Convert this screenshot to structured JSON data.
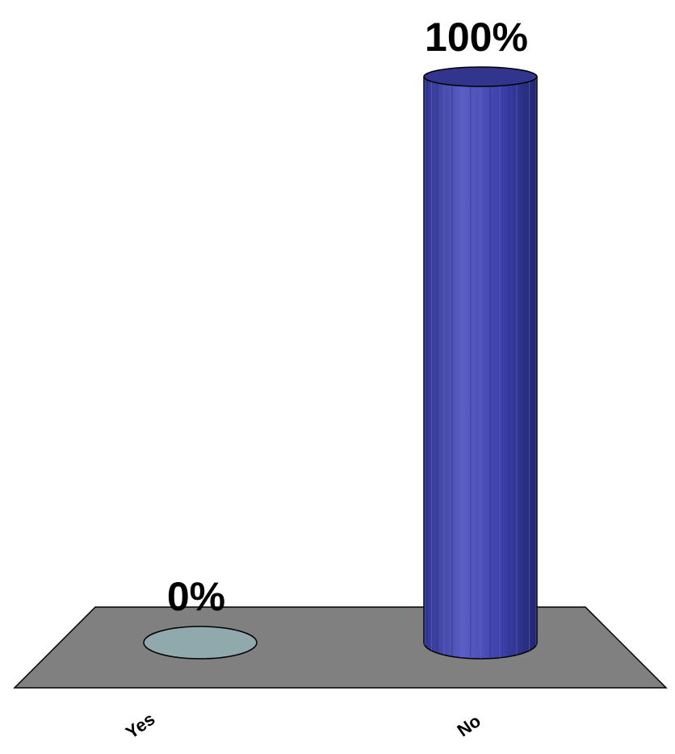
{
  "chart_data": {
    "type": "bar",
    "bar_shape": "cylinder",
    "three_d": true,
    "categories": [
      "Yes",
      "No"
    ],
    "values": [
      0,
      100
    ],
    "data_labels": [
      "0%",
      "100%"
    ],
    "ylim": [
      0,
      100
    ],
    "grid": false,
    "legend": "none",
    "title": "",
    "xlabel": "",
    "ylabel": "",
    "colors": {
      "bars": [
        "#8fa9ad",
        "#32358e"
      ],
      "bar_highlight": "#5a5fc4",
      "floor": "#808080",
      "outline": "#000000"
    }
  }
}
